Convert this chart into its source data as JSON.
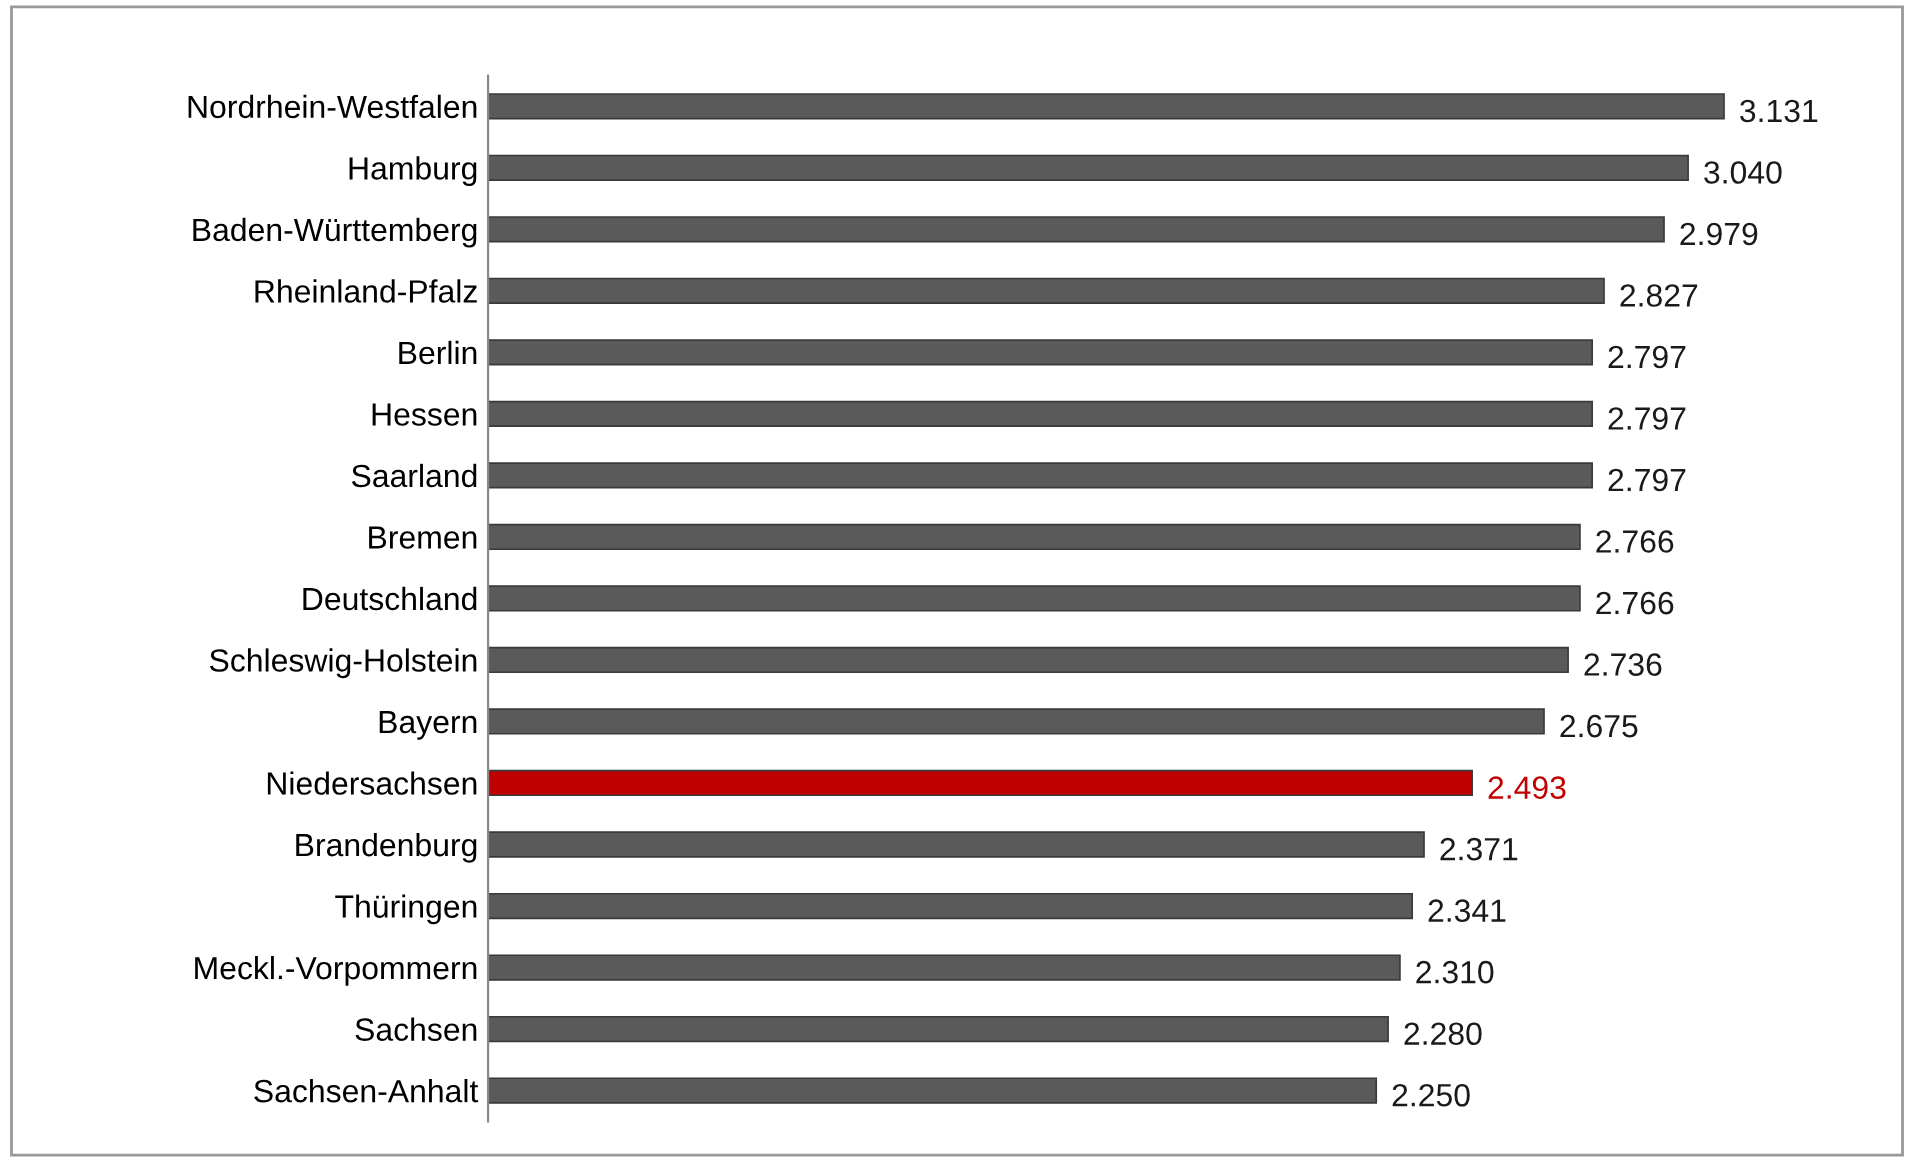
{
  "chart_data": {
    "type": "bar",
    "orientation": "horizontal",
    "categories": [
      "Nordrhein-Westfalen",
      "Hamburg",
      "Baden-Württemberg",
      "Rheinland-Pfalz",
      "Berlin",
      "Hessen",
      "Saarland",
      "Bremen",
      "Deutschland",
      "Schleswig-Holstein",
      "Bayern",
      "Niedersachsen",
      "Brandenburg",
      "Thüringen",
      "Meckl.-Vorpommern",
      "Sachsen",
      "Sachsen-Anhalt"
    ],
    "values": [
      3.131,
      3.04,
      2.979,
      2.827,
      2.797,
      2.797,
      2.797,
      2.766,
      2.766,
      2.736,
      2.675,
      2.493,
      2.371,
      2.341,
      2.31,
      2.28,
      2.25
    ],
    "value_labels": [
      "3.131",
      "3.040",
      "2.979",
      "2.827",
      "2.797",
      "2.797",
      "2.797",
      "2.766",
      "2.766",
      "2.736",
      "2.675",
      "2.493",
      "2.371",
      "2.341",
      "2.310",
      "2.280",
      "2.250"
    ],
    "colors": [
      "#5a5a5a",
      "#5a5a5a",
      "#5a5a5a",
      "#5a5a5a",
      "#5a5a5a",
      "#5a5a5a",
      "#5a5a5a",
      "#5a5a5a",
      "#5a5a5a",
      "#5a5a5a",
      "#5a5a5a",
      "#c00000",
      "#5a5a5a",
      "#5a5a5a",
      "#5a5a5a",
      "#5a5a5a",
      "#5a5a5a"
    ],
    "grid": false,
    "legend": false,
    "tick_labels": "y"
  }
}
